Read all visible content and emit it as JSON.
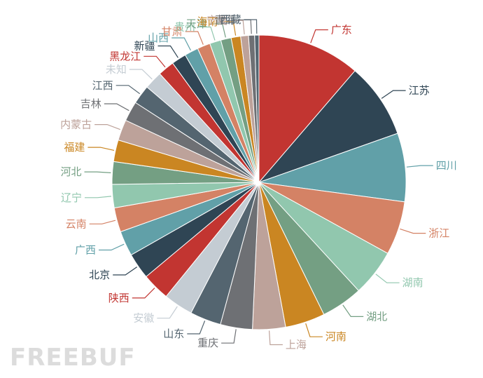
{
  "watermark": "FREEBUF",
  "chart_data": {
    "type": "pie",
    "slices": [
      {
        "label": "广东",
        "value": 11.9,
        "color": "#c23531"
      },
      {
        "label": "江苏",
        "value": 8.7,
        "color": "#2f4554"
      },
      {
        "label": "四川",
        "value": 7.9,
        "color": "#61a0a8"
      },
      {
        "label": "浙江",
        "value": 6.2,
        "color": "#d48265"
      },
      {
        "label": "湖南",
        "value": 5.4,
        "color": "#91c7ae"
      },
      {
        "label": "湖北",
        "value": 4.8,
        "color": "#749f83"
      },
      {
        "label": "河南",
        "value": 4.6,
        "color": "#ca8622"
      },
      {
        "label": "上海",
        "value": 3.8,
        "color": "#bda29a"
      },
      {
        "label": "重庆",
        "value": 3.7,
        "color": "#6e7074"
      },
      {
        "label": "山东",
        "value": 3.6,
        "color": "#546570"
      },
      {
        "label": "安徽",
        "value": 3.4,
        "color": "#c4ccd3"
      },
      {
        "label": "陕西",
        "value": 3.2,
        "color": "#c23531"
      },
      {
        "label": "北京",
        "value": 3.0,
        "color": "#2f4554"
      },
      {
        "label": "广西",
        "value": 2.9,
        "color": "#61a0a8"
      },
      {
        "label": "云南",
        "value": 2.8,
        "color": "#d48265"
      },
      {
        "label": "辽宁",
        "value": 2.7,
        "color": "#91c7ae"
      },
      {
        "label": "河北",
        "value": 2.6,
        "color": "#749f83"
      },
      {
        "label": "福建",
        "value": 2.5,
        "color": "#ca8622"
      },
      {
        "label": "内蒙古",
        "value": 2.4,
        "color": "#bda29a"
      },
      {
        "label": "吉林",
        "value": 2.3,
        "color": "#6e7074"
      },
      {
        "label": "江西",
        "value": 2.2,
        "color": "#546570"
      },
      {
        "label": "未知",
        "value": 2.1,
        "color": "#c4ccd3"
      },
      {
        "label": "黑龙江",
        "value": 1.9,
        "color": "#c23531"
      },
      {
        "label": "新疆",
        "value": 1.7,
        "color": "#2f4554"
      },
      {
        "label": "山西",
        "value": 1.6,
        "color": "#61a0a8"
      },
      {
        "label": "甘肃",
        "value": 1.5,
        "color": "#d48265"
      },
      {
        "label": "贵州",
        "value": 1.3,
        "color": "#91c7ae"
      },
      {
        "label": "天津",
        "value": 1.2,
        "color": "#749f83"
      },
      {
        "label": "海南",
        "value": 1.1,
        "color": "#ca8622"
      },
      {
        "label": "宁夏",
        "value": 0.9,
        "color": "#bda29a"
      },
      {
        "label": "青海",
        "value": 0.7,
        "color": "#6e7074"
      },
      {
        "label": "西藏",
        "value": 0.5,
        "color": "#546570"
      }
    ],
    "title": "",
    "legend": "none",
    "grid": false
  }
}
